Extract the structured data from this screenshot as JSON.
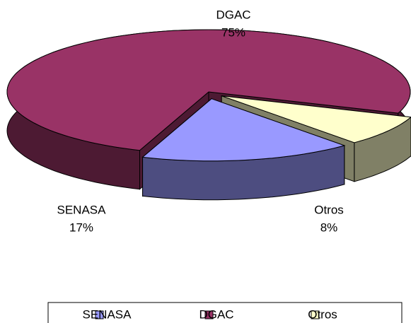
{
  "chart_data": {
    "type": "pie3d",
    "categories": [
      "SENASA",
      "DGAC",
      "Otros"
    ],
    "values": [
      17,
      75,
      8
    ],
    "value_labels": [
      "17%",
      "75%",
      "8%"
    ],
    "colors": [
      "#9999ff",
      "#993366",
      "#ffffcc"
    ],
    "legend": "bottom"
  }
}
